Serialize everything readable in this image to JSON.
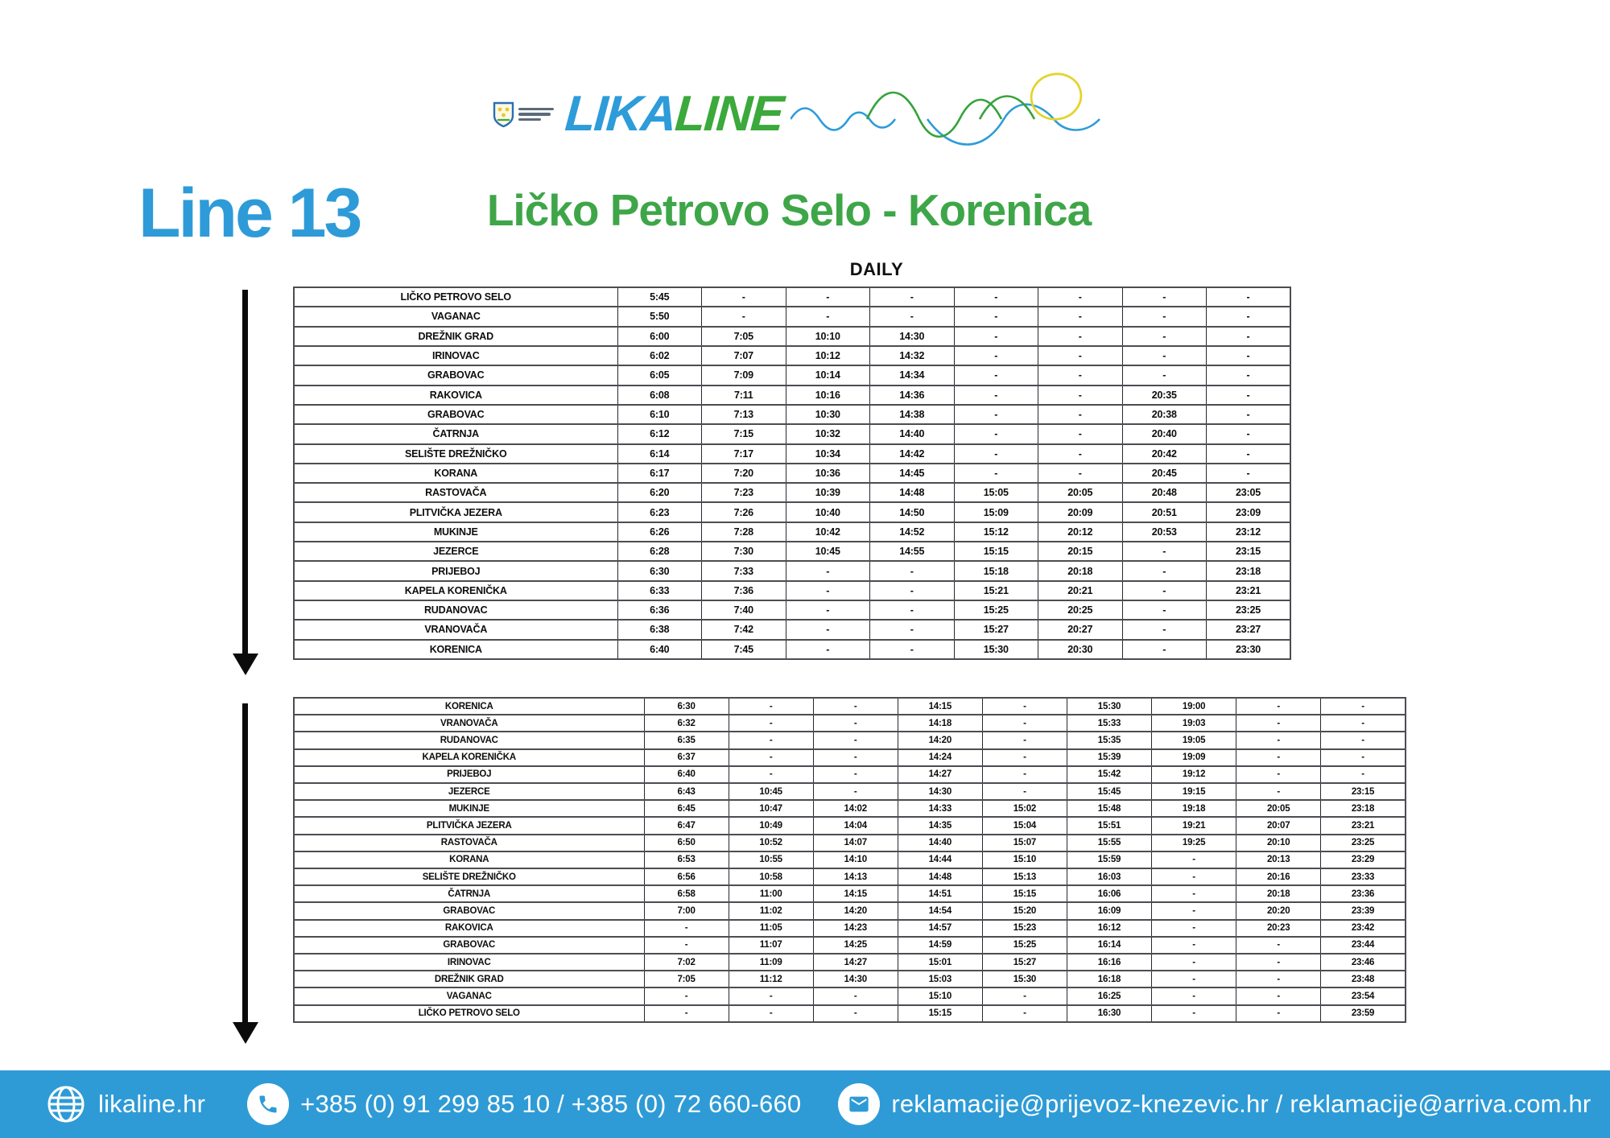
{
  "brand": {
    "wordmark_blue": "LIKA",
    "wordmark_green": "LINE"
  },
  "header": {
    "line_label": "Line 13",
    "route_title": "Ličko Petrovo Selo - Korenica",
    "frequency_label": "DAILY"
  },
  "colors": {
    "brand_blue": "#2D9CD9",
    "brand_green": "#3EA648",
    "footer_blue": "#2E9BD6",
    "logo_yellow": "#E3D42D",
    "table_text": "#0D0D0D"
  },
  "outbound_table": {
    "rows": [
      {
        "station": "LIČKO PETROVO SELO",
        "times": [
          "5:45",
          "-",
          "-",
          "-",
          "-",
          "-",
          "-",
          "-"
        ]
      },
      {
        "station": "VAGANAC",
        "times": [
          "5:50",
          "-",
          "-",
          "-",
          "-",
          "-",
          "-",
          "-"
        ]
      },
      {
        "station": "DREŽNIK GRAD",
        "times": [
          "6:00",
          "7:05",
          "10:10",
          "14:30",
          "-",
          "-",
          "-",
          "-"
        ]
      },
      {
        "station": "IRINOVAC",
        "times": [
          "6:02",
          "7:07",
          "10:12",
          "14:32",
          "-",
          "-",
          "-",
          "-"
        ]
      },
      {
        "station": "GRABOVAC",
        "times": [
          "6:05",
          "7:09",
          "10:14",
          "14:34",
          "-",
          "-",
          "-",
          "-"
        ]
      },
      {
        "station": "RAKOVICA",
        "times": [
          "6:08",
          "7:11",
          "10:16",
          "14:36",
          "-",
          "-",
          "20:35",
          "-"
        ]
      },
      {
        "station": "GRABOVAC",
        "times": [
          "6:10",
          "7:13",
          "10:30",
          "14:38",
          "-",
          "-",
          "20:38",
          "-"
        ]
      },
      {
        "station": "ČATRNJA",
        "times": [
          "6:12",
          "7:15",
          "10:32",
          "14:40",
          "-",
          "-",
          "20:40",
          "-"
        ]
      },
      {
        "station": "SELIŠTE DREŽNIČKO",
        "times": [
          "6:14",
          "7:17",
          "10:34",
          "14:42",
          "-",
          "-",
          "20:42",
          "-"
        ]
      },
      {
        "station": "KORANA",
        "times": [
          "6:17",
          "7:20",
          "10:36",
          "14:45",
          "-",
          "-",
          "20:45",
          "-"
        ]
      },
      {
        "station": "RASTOVAČA",
        "times": [
          "6:20",
          "7:23",
          "10:39",
          "14:48",
          "15:05",
          "20:05",
          "20:48",
          "23:05"
        ]
      },
      {
        "station": "PLITVIČKA JEZERA",
        "times": [
          "6:23",
          "7:26",
          "10:40",
          "14:50",
          "15:09",
          "20:09",
          "20:51",
          "23:09"
        ]
      },
      {
        "station": "MUKINJE",
        "times": [
          "6:26",
          "7:28",
          "10:42",
          "14:52",
          "15:12",
          "20:12",
          "20:53",
          "23:12"
        ]
      },
      {
        "station": "JEZERCE",
        "times": [
          "6:28",
          "7:30",
          "10:45",
          "14:55",
          "15:15",
          "20:15",
          "-",
          "23:15"
        ]
      },
      {
        "station": "PRIJEBOJ",
        "times": [
          "6:30",
          "7:33",
          "-",
          "-",
          "15:18",
          "20:18",
          "-",
          "23:18"
        ]
      },
      {
        "station": "KAPELA KORENIČKA",
        "times": [
          "6:33",
          "7:36",
          "-",
          "-",
          "15:21",
          "20:21",
          "-",
          "23:21"
        ]
      },
      {
        "station": "RUDANOVAC",
        "times": [
          "6:36",
          "7:40",
          "-",
          "-",
          "15:25",
          "20:25",
          "-",
          "23:25"
        ]
      },
      {
        "station": "VRANOVAČA",
        "times": [
          "6:38",
          "7:42",
          "-",
          "-",
          "15:27",
          "20:27",
          "-",
          "23:27"
        ]
      },
      {
        "station": "KORENICA",
        "times": [
          "6:40",
          "7:45",
          "-",
          "-",
          "15:30",
          "20:30",
          "-",
          "23:30"
        ]
      }
    ]
  },
  "return_table": {
    "rows": [
      {
        "station": "KORENICA",
        "times": [
          "6:30",
          "-",
          "-",
          "14:15",
          "-",
          "15:30",
          "19:00",
          "-",
          "-"
        ]
      },
      {
        "station": "VRANOVAČA",
        "times": [
          "6:32",
          "-",
          "-",
          "14:18",
          "-",
          "15:33",
          "19:03",
          "-",
          "-"
        ]
      },
      {
        "station": "RUDANOVAC",
        "times": [
          "6:35",
          "-",
          "-",
          "14:20",
          "-",
          "15:35",
          "19:05",
          "-",
          "-"
        ]
      },
      {
        "station": "KAPELA KORENIČKA",
        "times": [
          "6:37",
          "-",
          "-",
          "14:24",
          "-",
          "15:39",
          "19:09",
          "-",
          "-"
        ]
      },
      {
        "station": "PRIJEBOJ",
        "times": [
          "6:40",
          "-",
          "-",
          "14:27",
          "-",
          "15:42",
          "19:12",
          "-",
          "-"
        ]
      },
      {
        "station": "JEZERCE",
        "times": [
          "6:43",
          "10:45",
          "-",
          "14:30",
          "-",
          "15:45",
          "19:15",
          "-",
          "23:15"
        ]
      },
      {
        "station": "MUKINJE",
        "times": [
          "6:45",
          "10:47",
          "14:02",
          "14:33",
          "15:02",
          "15:48",
          "19:18",
          "20:05",
          "23:18"
        ]
      },
      {
        "station": "PLITVIČKA JEZERA",
        "times": [
          "6:47",
          "10:49",
          "14:04",
          "14:35",
          "15:04",
          "15:51",
          "19:21",
          "20:07",
          "23:21"
        ]
      },
      {
        "station": "RASTOVAČA",
        "times": [
          "6:50",
          "10:52",
          "14:07",
          "14:40",
          "15:07",
          "15:55",
          "19:25",
          "20:10",
          "23:25"
        ]
      },
      {
        "station": "KORANA",
        "times": [
          "6:53",
          "10:55",
          "14:10",
          "14:44",
          "15:10",
          "15:59",
          "-",
          "20:13",
          "23:29"
        ]
      },
      {
        "station": "SELIŠTE DREŽNIČKO",
        "times": [
          "6:56",
          "10:58",
          "14:13",
          "14:48",
          "15:13",
          "16:03",
          "-",
          "20:16",
          "23:33"
        ]
      },
      {
        "station": "ČATRNJA",
        "times": [
          "6:58",
          "11:00",
          "14:15",
          "14:51",
          "15:15",
          "16:06",
          "-",
          "20:18",
          "23:36"
        ]
      },
      {
        "station": "GRABOVAC",
        "times": [
          "7:00",
          "11:02",
          "14:20",
          "14:54",
          "15:20",
          "16:09",
          "-",
          "20:20",
          "23:39"
        ]
      },
      {
        "station": "RAKOVICA",
        "times": [
          "-",
          "11:05",
          "14:23",
          "14:57",
          "15:23",
          "16:12",
          "-",
          "20:23",
          "23:42"
        ]
      },
      {
        "station": "GRABOVAC",
        "times": [
          "-",
          "11:07",
          "14:25",
          "14:59",
          "15:25",
          "16:14",
          "-",
          "-",
          "23:44"
        ]
      },
      {
        "station": "IRINOVAC",
        "times": [
          "7:02",
          "11:09",
          "14:27",
          "15:01",
          "15:27",
          "16:16",
          "-",
          "-",
          "23:46"
        ]
      },
      {
        "station": "DREŽNIK GRAD",
        "times": [
          "7:05",
          "11:12",
          "14:30",
          "15:03",
          "15:30",
          "16:18",
          "-",
          "-",
          "23:48"
        ]
      },
      {
        "station": "VAGANAC",
        "times": [
          "-",
          "-",
          "-",
          "15:10",
          "-",
          "16:25",
          "-",
          "-",
          "23:54"
        ]
      },
      {
        "station": "LIČKO PETROVO SELO",
        "times": [
          "-",
          "-",
          "-",
          "15:15",
          "-",
          "16:30",
          "-",
          "-",
          "23:59"
        ]
      }
    ]
  },
  "footer": {
    "website": "likaline.hr",
    "phone_numbers": "+385 (0) 91 299 85 10 / +385 (0) 72 660-660",
    "emails": "reklamacije@prijevoz-knezevic.hr / reklamacije@arriva.com.hr"
  }
}
